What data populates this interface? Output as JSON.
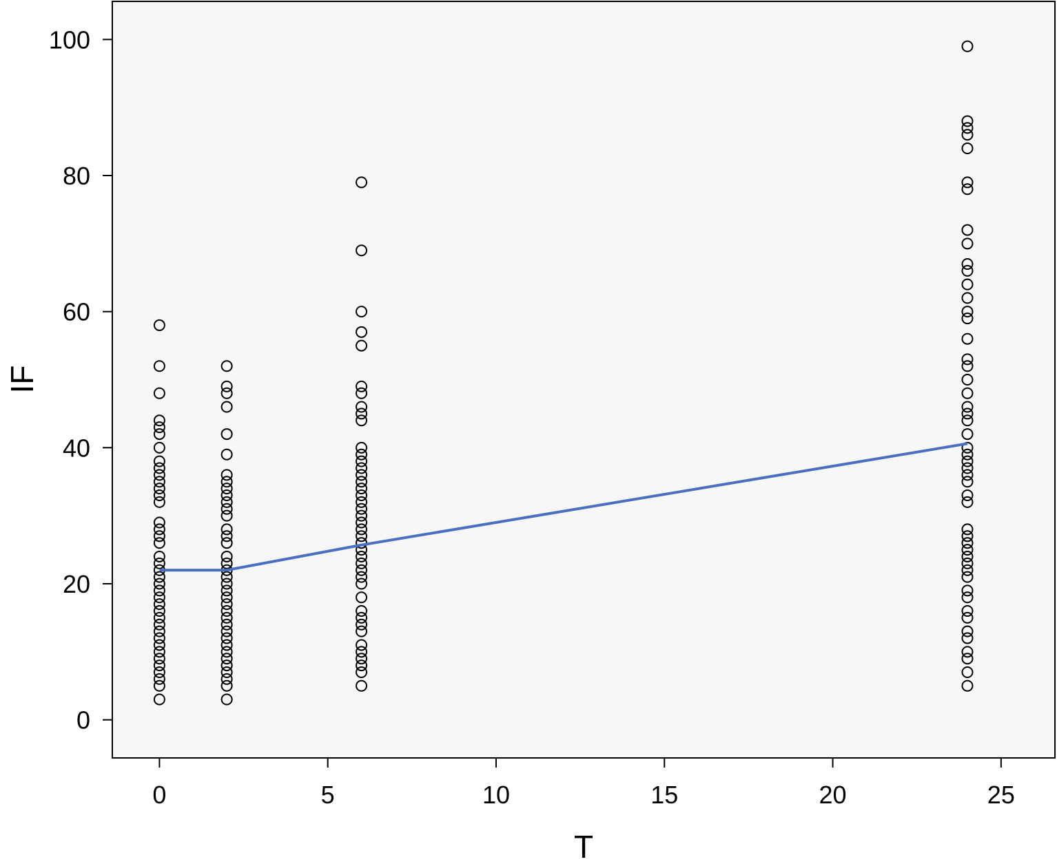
{
  "chart_data": {
    "type": "scatter",
    "title": "",
    "xlabel": "T",
    "ylabel": "IF",
    "xlim": [
      -1.4,
      26.6
    ],
    "ylim": [
      -5.6,
      105.6
    ],
    "xticks": [
      0,
      5,
      10,
      15,
      20,
      25
    ],
    "yticks": [
      0,
      20,
      40,
      60,
      80,
      100
    ],
    "xtick_labels": [
      "0",
      "5",
      "10",
      "15",
      "20",
      "25"
    ],
    "ytick_labels": [
      "0",
      "20",
      "40",
      "60",
      "80",
      "100"
    ],
    "grid": false,
    "legend": "none",
    "colors": {
      "plot_background": "#f7f7f7",
      "marker_edge": "#000000",
      "fit_line": "#4a6fbf"
    },
    "series": [
      {
        "marker": "open-circle",
        "points": [
          [
            0,
            58
          ],
          [
            0,
            52
          ],
          [
            0,
            48
          ],
          [
            0,
            44
          ],
          [
            0,
            43
          ],
          [
            0,
            42
          ],
          [
            0,
            40
          ],
          [
            0,
            38
          ],
          [
            0,
            37
          ],
          [
            0,
            36
          ],
          [
            0,
            35
          ],
          [
            0,
            34
          ],
          [
            0,
            33
          ],
          [
            0,
            32
          ],
          [
            0,
            29
          ],
          [
            0,
            28
          ],
          [
            0,
            27
          ],
          [
            0,
            26
          ],
          [
            0,
            24
          ],
          [
            0,
            23
          ],
          [
            0,
            22
          ],
          [
            0,
            21
          ],
          [
            0,
            20
          ],
          [
            0,
            19
          ],
          [
            0,
            18
          ],
          [
            0,
            17
          ],
          [
            0,
            16
          ],
          [
            0,
            15
          ],
          [
            0,
            14
          ],
          [
            0,
            13
          ],
          [
            0,
            12
          ],
          [
            0,
            11
          ],
          [
            0,
            10
          ],
          [
            0,
            9
          ],
          [
            0,
            8
          ],
          [
            0,
            7
          ],
          [
            0,
            6
          ],
          [
            0,
            5
          ],
          [
            0,
            3
          ],
          [
            2,
            52
          ],
          [
            2,
            49
          ],
          [
            2,
            48
          ],
          [
            2,
            46
          ],
          [
            2,
            42
          ],
          [
            2,
            39
          ],
          [
            2,
            36
          ],
          [
            2,
            35
          ],
          [
            2,
            34
          ],
          [
            2,
            33
          ],
          [
            2,
            32
          ],
          [
            2,
            31
          ],
          [
            2,
            30
          ],
          [
            2,
            28
          ],
          [
            2,
            27
          ],
          [
            2,
            26
          ],
          [
            2,
            24
          ],
          [
            2,
            23
          ],
          [
            2,
            22
          ],
          [
            2,
            21
          ],
          [
            2,
            20
          ],
          [
            2,
            19
          ],
          [
            2,
            18
          ],
          [
            2,
            17
          ],
          [
            2,
            16
          ],
          [
            2,
            15
          ],
          [
            2,
            14
          ],
          [
            2,
            13
          ],
          [
            2,
            12
          ],
          [
            2,
            11
          ],
          [
            2,
            10
          ],
          [
            2,
            9
          ],
          [
            2,
            8
          ],
          [
            2,
            7
          ],
          [
            2,
            6
          ],
          [
            2,
            5
          ],
          [
            2,
            3
          ],
          [
            6,
            79
          ],
          [
            6,
            69
          ],
          [
            6,
            60
          ],
          [
            6,
            57
          ],
          [
            6,
            55
          ],
          [
            6,
            49
          ],
          [
            6,
            48
          ],
          [
            6,
            46
          ],
          [
            6,
            45
          ],
          [
            6,
            44
          ],
          [
            6,
            40
          ],
          [
            6,
            39
          ],
          [
            6,
            38
          ],
          [
            6,
            37
          ],
          [
            6,
            36
          ],
          [
            6,
            35
          ],
          [
            6,
            34
          ],
          [
            6,
            33
          ],
          [
            6,
            32
          ],
          [
            6,
            31
          ],
          [
            6,
            30
          ],
          [
            6,
            29
          ],
          [
            6,
            28
          ],
          [
            6,
            27
          ],
          [
            6,
            26
          ],
          [
            6,
            25
          ],
          [
            6,
            24
          ],
          [
            6,
            23
          ],
          [
            6,
            22
          ],
          [
            6,
            21
          ],
          [
            6,
            20
          ],
          [
            6,
            18
          ],
          [
            6,
            16
          ],
          [
            6,
            15
          ],
          [
            6,
            14
          ],
          [
            6,
            13
          ],
          [
            6,
            11
          ],
          [
            6,
            10
          ],
          [
            6,
            9
          ],
          [
            6,
            8
          ],
          [
            6,
            7
          ],
          [
            6,
            5
          ],
          [
            24,
            99
          ],
          [
            24,
            88
          ],
          [
            24,
            87
          ],
          [
            24,
            86
          ],
          [
            24,
            84
          ],
          [
            24,
            79
          ],
          [
            24,
            78
          ],
          [
            24,
            72
          ],
          [
            24,
            70
          ],
          [
            24,
            67
          ],
          [
            24,
            66
          ],
          [
            24,
            64
          ],
          [
            24,
            62
          ],
          [
            24,
            60
          ],
          [
            24,
            59
          ],
          [
            24,
            56
          ],
          [
            24,
            53
          ],
          [
            24,
            52
          ],
          [
            24,
            50
          ],
          [
            24,
            48
          ],
          [
            24,
            46
          ],
          [
            24,
            45
          ],
          [
            24,
            44
          ],
          [
            24,
            42
          ],
          [
            24,
            40
          ],
          [
            24,
            39
          ],
          [
            24,
            38
          ],
          [
            24,
            37
          ],
          [
            24,
            36
          ],
          [
            24,
            35
          ],
          [
            24,
            33
          ],
          [
            24,
            32
          ],
          [
            24,
            28
          ],
          [
            24,
            27
          ],
          [
            24,
            26
          ],
          [
            24,
            25
          ],
          [
            24,
            24
          ],
          [
            24,
            23
          ],
          [
            24,
            22
          ],
          [
            24,
            21
          ],
          [
            24,
            19
          ],
          [
            24,
            18
          ],
          [
            24,
            16
          ],
          [
            24,
            15
          ],
          [
            24,
            13
          ],
          [
            24,
            12
          ],
          [
            24,
            10
          ],
          [
            24,
            9
          ],
          [
            24,
            7
          ],
          [
            24,
            5
          ]
        ]
      }
    ],
    "fit_line": {
      "x": [
        0,
        2,
        6,
        24
      ],
      "y": [
        22,
        22,
        25.7,
        40.6
      ]
    }
  }
}
